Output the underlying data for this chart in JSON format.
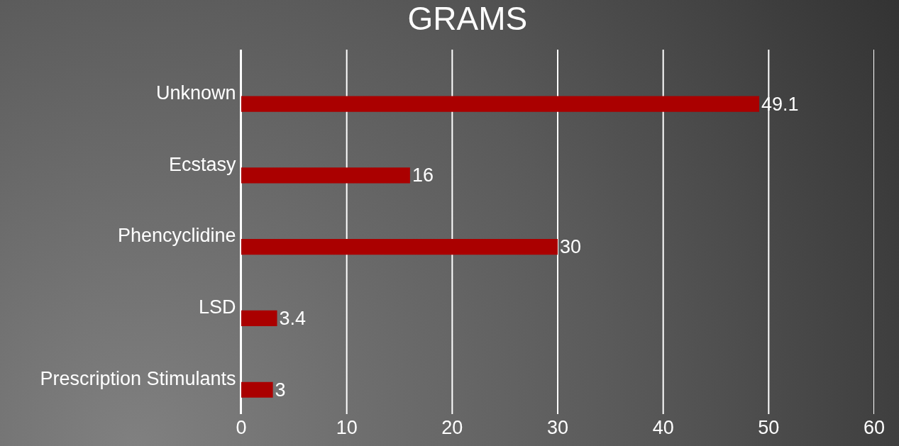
{
  "chart_data": {
    "type": "bar",
    "orientation": "horizontal",
    "title": "GRAMS",
    "categories": [
      "Unknown",
      "Ecstasy",
      "Phencyclidine",
      "LSD",
      "Prescription Stimulants"
    ],
    "values": [
      49.1,
      16,
      30,
      3.4,
      3
    ],
    "color": "#aa0000",
    "xlim": [
      0,
      60
    ],
    "xticks": [
      0,
      10,
      20,
      30,
      40,
      50,
      60
    ],
    "grid": "x",
    "data_labels": true
  }
}
